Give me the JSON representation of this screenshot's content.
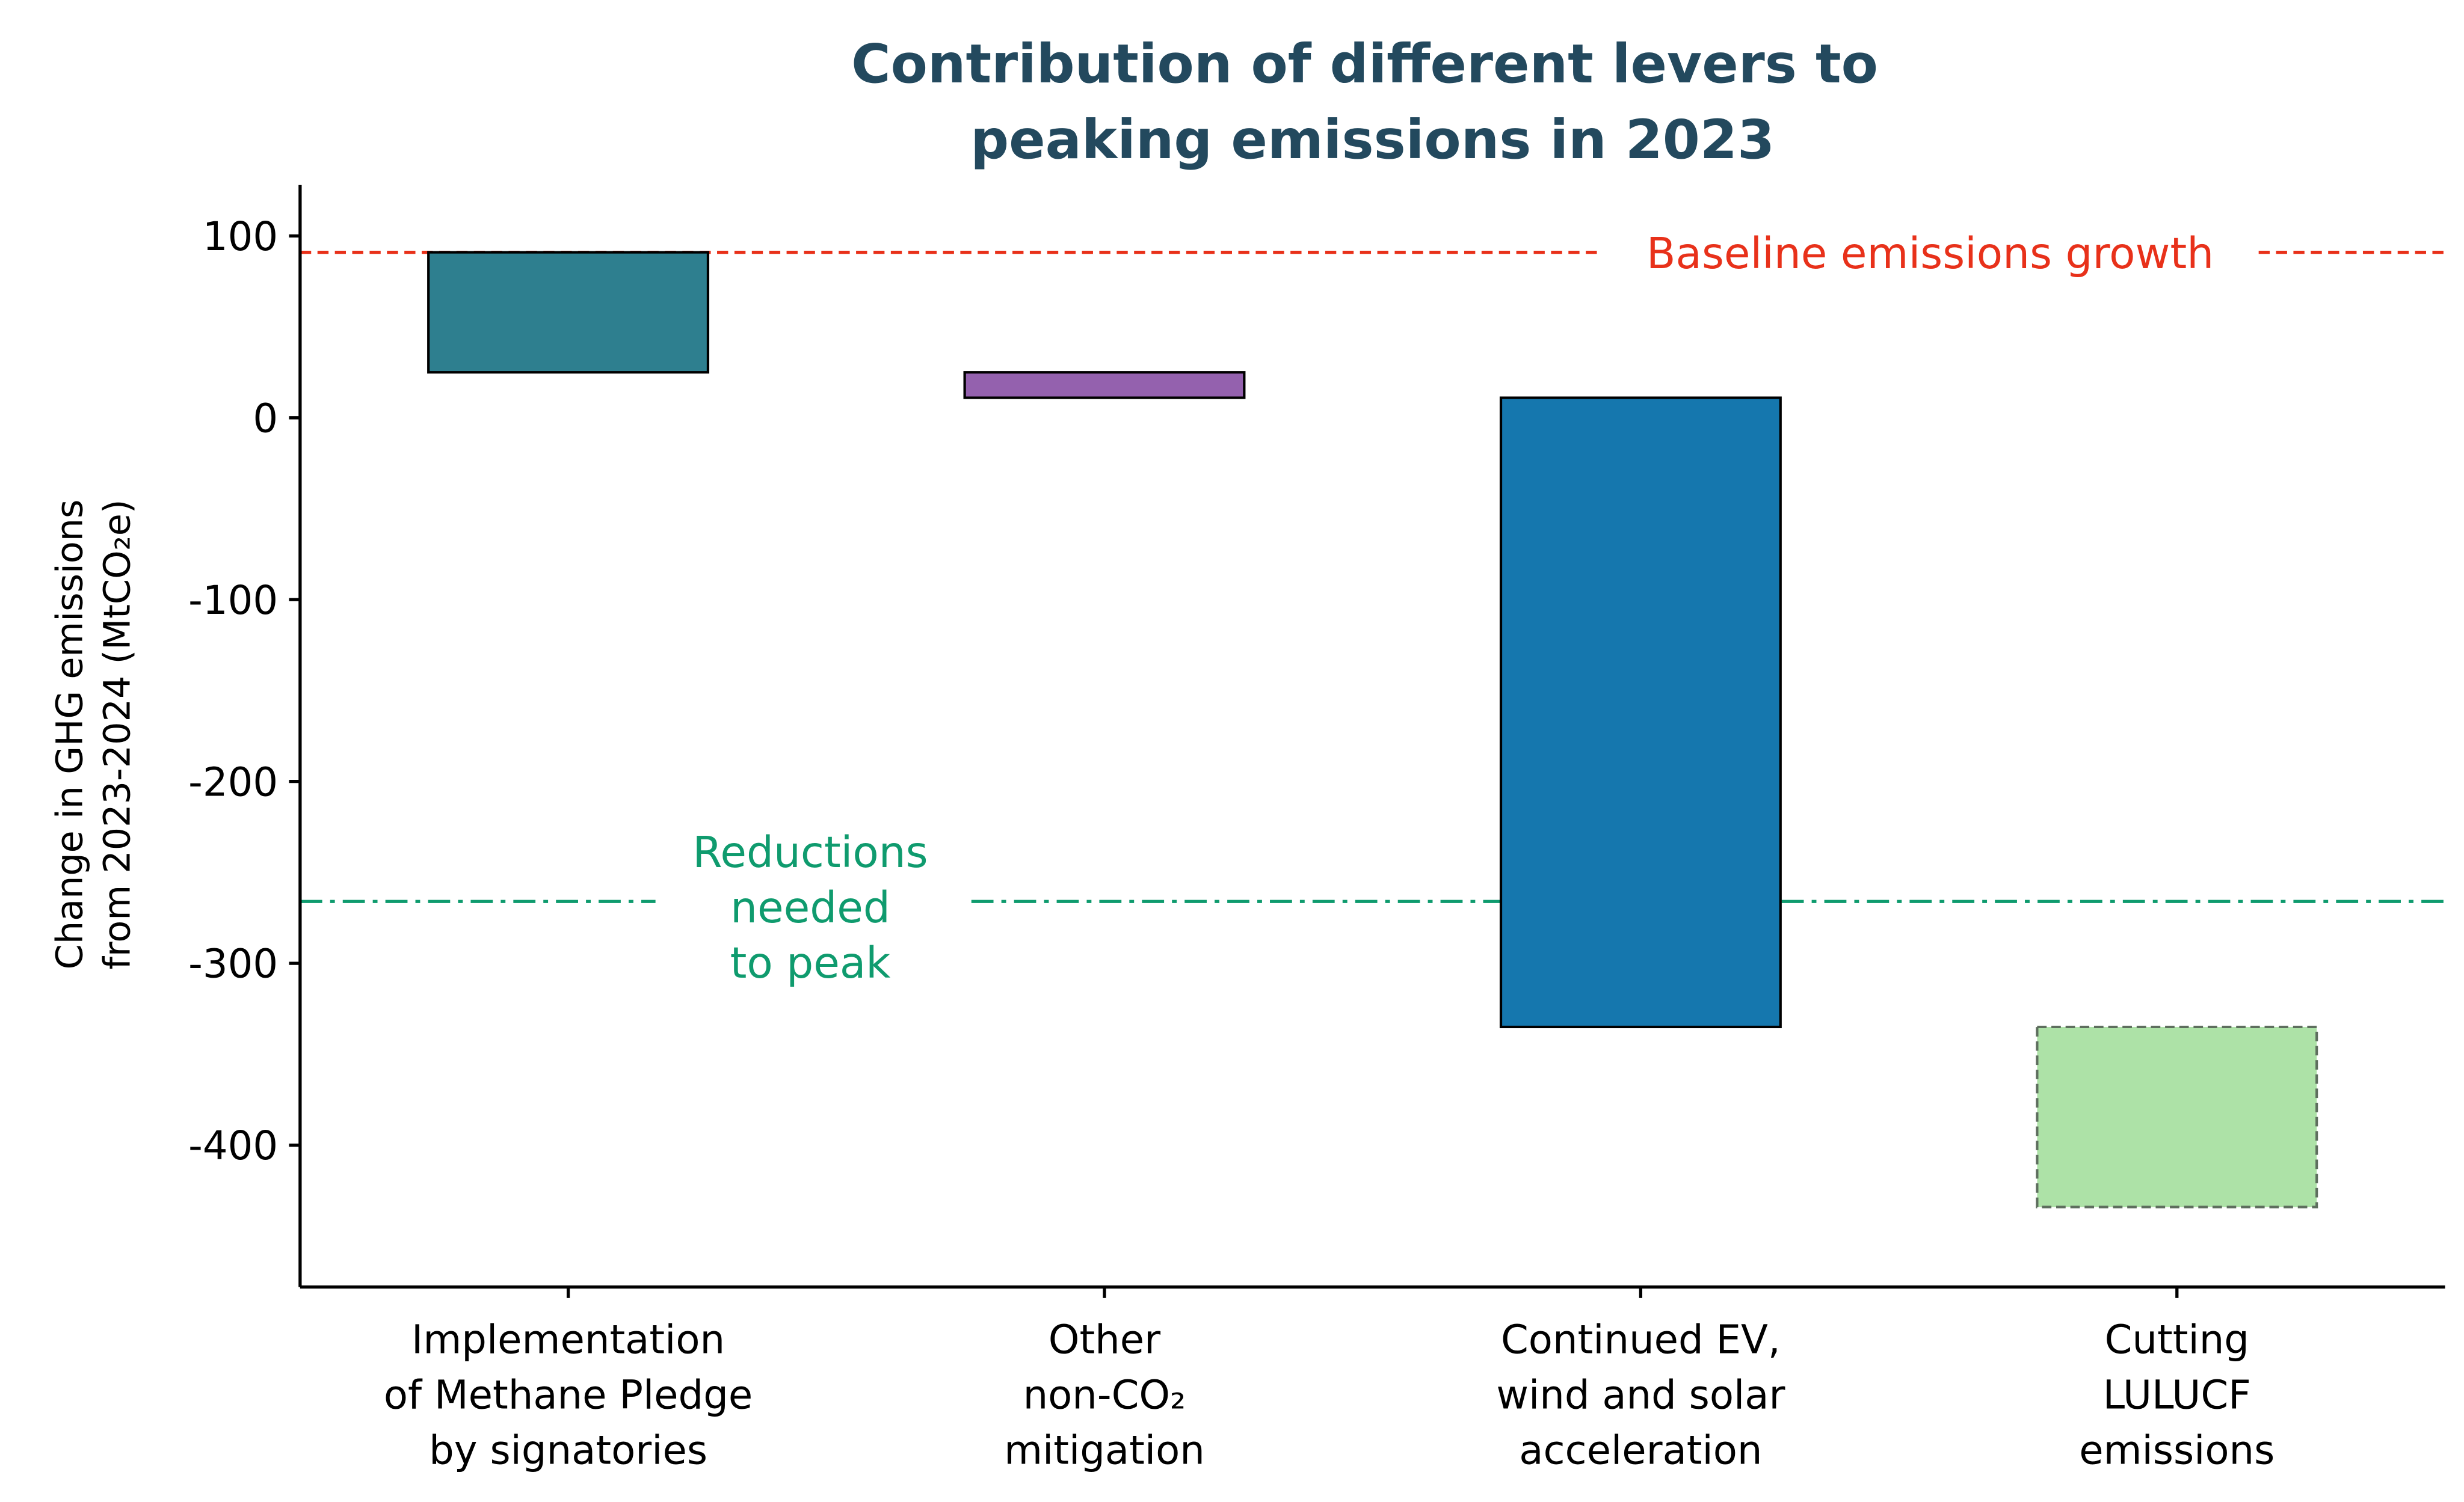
{
  "chart_data": {
    "type": "waterfall-bar",
    "title": [
      "Contribution of different levers to",
      "peaking emissions in 2023"
    ],
    "ylabel": [
      "Change in GHG emissions",
      "from 2023-2024 (MtCO₂e)"
    ],
    "xlabel": "",
    "ylim": [
      -478,
      128
    ],
    "yticks": [
      100,
      0,
      -100,
      -200,
      -300,
      -400
    ],
    "ytick_labels": [
      "100",
      "0",
      "-100",
      "-200",
      "-300",
      "-400"
    ],
    "categories": [
      [
        "Implementation",
        "of Methane Pledge",
        "by signatories"
      ],
      [
        "Other",
        "non-CO₂",
        "mitigation"
      ],
      [
        "Continued EV,",
        "wind and solar",
        "acceleration"
      ],
      [
        "Cutting",
        "LULUCF",
        "emissions"
      ]
    ],
    "bars": [
      {
        "start": 91,
        "end": 25,
        "value": -66,
        "color": "#2e7f8f",
        "edge": "solid"
      },
      {
        "start": 25,
        "end": 11,
        "value": -14,
        "color": "#9461ae",
        "edge": "solid"
      },
      {
        "start": 11,
        "end": -335,
        "value": -346,
        "color": "#1577ae",
        "edge": "solid"
      },
      {
        "start": -335,
        "end": -434,
        "value": -99,
        "color": "#ade2a7",
        "edge": "dashed"
      }
    ],
    "reference_lines": [
      {
        "label": "Baseline emissions growth",
        "value": 91,
        "color": "#e8311a",
        "style": "dashed"
      },
      {
        "label": [
          "Reductions",
          "needed",
          "to peak"
        ],
        "value": -266,
        "color": "#0f9b6e",
        "style": "dashdot"
      }
    ]
  }
}
